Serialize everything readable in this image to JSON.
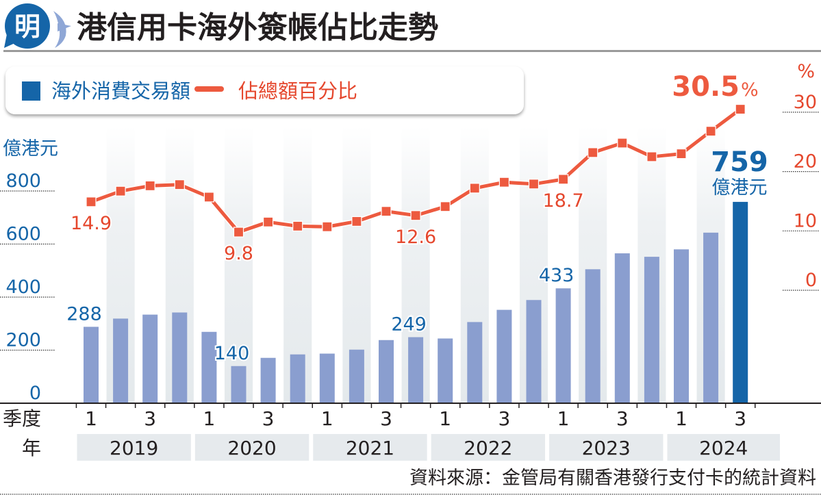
{
  "header": {
    "logo_char": "明",
    "title": "港信用卡海外簽帳佔比走勢"
  },
  "colors": {
    "bar": "#8a9ecf",
    "bar_highlight": "#1565a8",
    "line": "#ed5a3f",
    "axis_left_text": "#1565a8",
    "axis_right_text": "#e5472d",
    "stripe": "#e8ecef",
    "year_box": "#e6eaed",
    "text_dark": "#231f20"
  },
  "legend": {
    "bar_label": "海外消費交易額",
    "line_label": "佔總額百分比"
  },
  "annotations": {
    "latest_pct": "30.5",
    "latest_pct_unit": "%",
    "latest_value": "759",
    "latest_value_unit": "億港元"
  },
  "footer": {
    "quarter_label": "季度",
    "year_label": "年",
    "source": "資料來源：金管局有關香港發行支付卡的統計資料"
  },
  "chart_data": {
    "type": "bar+line",
    "title": "港信用卡海外簽帳佔比走勢",
    "left_axis": {
      "unit_label": "億港元",
      "ticks": [
        0,
        200,
        400,
        600,
        800
      ],
      "range": [
        0,
        800
      ]
    },
    "right_axis": {
      "unit_label": "%",
      "ticks": [
        0,
        10,
        20,
        30
      ],
      "range": [
        0,
        30
      ]
    },
    "grid": "dotted stubs at axis edges",
    "legend_placement": "top-left",
    "years": [
      "2019",
      "2020",
      "2021",
      "2022",
      "2023",
      "2024"
    ],
    "quarters": [
      "2019Q1",
      "2019Q2",
      "2019Q3",
      "2019Q4",
      "2020Q1",
      "2020Q2",
      "2020Q3",
      "2020Q4",
      "2021Q1",
      "2021Q2",
      "2021Q3",
      "2021Q4",
      "2022Q1",
      "2022Q2",
      "2022Q3",
      "2022Q4",
      "2023Q1",
      "2023Q2",
      "2023Q3",
      "2023Q4",
      "2024Q1",
      "2024Q2",
      "2024Q3"
    ],
    "quarter_tick_labels": [
      "1",
      "",
      "3",
      "",
      "1",
      "",
      "3",
      "",
      "1",
      "",
      "3",
      "",
      "1",
      "",
      "3",
      "",
      "1",
      "",
      "3",
      "",
      "1",
      "",
      "3"
    ],
    "series": [
      {
        "name": "海外消費交易額",
        "type": "bar",
        "axis": "left",
        "unit": "億港元",
        "values": [
          288,
          319,
          334,
          342,
          269,
          140,
          171,
          184,
          187,
          202,
          238,
          249,
          244,
          306,
          352,
          389,
          433,
          505,
          565,
          552,
          580,
          643,
          759
        ],
        "labeled_indices": [
          0,
          5,
          11,
          16
        ]
      },
      {
        "name": "佔總額百分比",
        "type": "line",
        "axis": "right",
        "unit": "%",
        "values": [
          14.9,
          16.7,
          17.6,
          17.8,
          15.7,
          9.8,
          11.5,
          10.8,
          10.7,
          11.6,
          13.3,
          12.6,
          14.1,
          17.2,
          18.2,
          17.9,
          18.7,
          23.2,
          24.8,
          22.5,
          23.0,
          26.8,
          30.5
        ],
        "labeled_indices": [
          0,
          5,
          11,
          16
        ]
      }
    ]
  }
}
